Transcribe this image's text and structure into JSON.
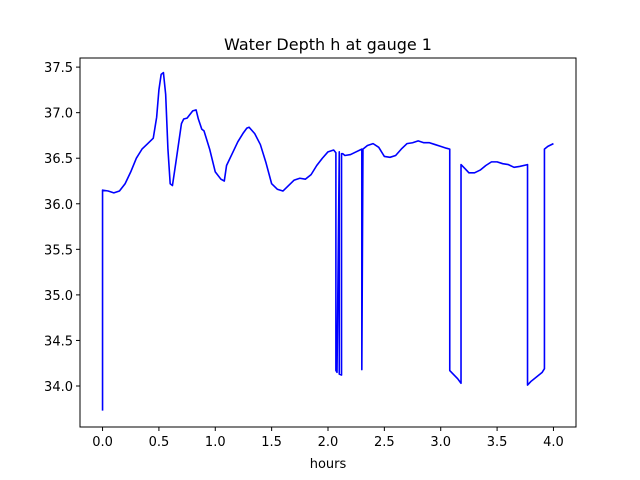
{
  "chart_data": {
    "type": "line",
    "title": "Water Depth h at gauge 1",
    "xlabel": "hours",
    "ylabel": "",
    "xlim": [
      -0.2,
      4.2
    ],
    "ylim": [
      33.55,
      37.6
    ],
    "xticks": [
      0.0,
      0.5,
      1.0,
      1.5,
      2.0,
      2.5,
      3.0,
      3.5,
      4.0
    ],
    "xtick_labels": [
      "0.0",
      "0.5",
      "1.0",
      "1.5",
      "2.0",
      "2.5",
      "3.0",
      "3.5",
      "4.0"
    ],
    "yticks": [
      34.0,
      34.5,
      35.0,
      35.5,
      36.0,
      36.5,
      37.0,
      37.5
    ],
    "ytick_labels": [
      "34.0",
      "34.5",
      "35.0",
      "35.5",
      "36.0",
      "36.5",
      "37.0",
      "37.5"
    ],
    "grid": false,
    "legend": "none",
    "series": [
      {
        "color": "#0000ff",
        "x": [
          0.0,
          0.0,
          0.05,
          0.1,
          0.15,
          0.2,
          0.25,
          0.3,
          0.35,
          0.4,
          0.45,
          0.48,
          0.5,
          0.52,
          0.54,
          0.56,
          0.58,
          0.6,
          0.62,
          0.65,
          0.7,
          0.72,
          0.75,
          0.8,
          0.83,
          0.85,
          0.88,
          0.9,
          0.95,
          1.0,
          1.05,
          1.08,
          1.1,
          1.15,
          1.2,
          1.25,
          1.28,
          1.3,
          1.35,
          1.4,
          1.45,
          1.5,
          1.55,
          1.6,
          1.65,
          1.7,
          1.75,
          1.8,
          1.85,
          1.9,
          1.95,
          2.0,
          2.05,
          2.07,
          2.07,
          2.08,
          2.1,
          2.1,
          2.12,
          2.12,
          2.13,
          2.15,
          2.2,
          2.25,
          2.3,
          2.3,
          2.31,
          2.35,
          2.4,
          2.45,
          2.5,
          2.55,
          2.6,
          2.65,
          2.7,
          2.75,
          2.8,
          2.85,
          2.9,
          2.95,
          3.0,
          3.05,
          3.08,
          3.08,
          3.15,
          3.18,
          3.18,
          3.22,
          3.25,
          3.3,
          3.35,
          3.4,
          3.45,
          3.5,
          3.55,
          3.6,
          3.65,
          3.7,
          3.77,
          3.77,
          3.8,
          3.9,
          3.92,
          3.92,
          3.95,
          4.0
        ],
        "y": [
          33.73,
          36.15,
          36.14,
          36.12,
          36.14,
          36.22,
          36.35,
          36.5,
          36.6,
          36.66,
          36.72,
          36.95,
          37.25,
          37.42,
          37.44,
          37.2,
          36.6,
          36.22,
          36.2,
          36.45,
          36.88,
          36.93,
          36.94,
          37.02,
          37.03,
          36.93,
          36.82,
          36.8,
          36.6,
          36.35,
          36.27,
          36.25,
          36.42,
          36.55,
          36.68,
          36.78,
          36.83,
          36.84,
          36.77,
          36.65,
          36.45,
          36.22,
          36.16,
          36.14,
          36.2,
          36.26,
          36.28,
          36.27,
          36.32,
          36.42,
          36.5,
          36.57,
          36.59,
          36.56,
          34.17,
          34.15,
          36.57,
          34.13,
          34.12,
          36.55,
          36.55,
          36.53,
          36.54,
          36.57,
          36.6,
          34.18,
          36.6,
          36.64,
          36.66,
          36.62,
          36.52,
          36.51,
          36.53,
          36.6,
          36.66,
          36.67,
          36.69,
          36.67,
          36.67,
          36.65,
          36.63,
          36.61,
          36.6,
          34.17,
          34.08,
          34.03,
          36.43,
          36.38,
          36.34,
          36.34,
          36.37,
          36.42,
          36.46,
          36.46,
          36.44,
          36.43,
          36.4,
          36.41,
          36.43,
          34.01,
          34.05,
          34.15,
          34.19,
          36.6,
          36.63,
          36.66
        ]
      }
    ]
  }
}
